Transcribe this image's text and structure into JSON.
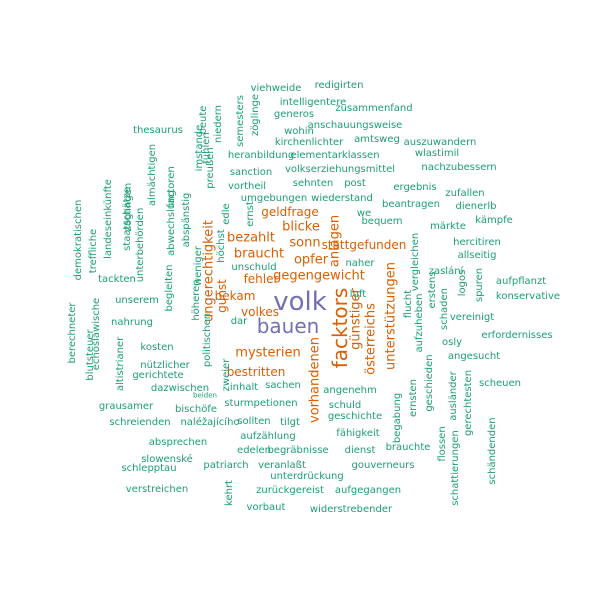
{
  "colors": {
    "teal": "#1b9e77",
    "orange": "#d95f02",
    "purple": "#7570b3"
  },
  "words": [
    {
      "t": "volk",
      "c": "purple"
    },
    {
      "t": "bauen",
      "c": "purple"
    },
    {
      "t": "facktors",
      "c": "orange"
    },
    {
      "t": "vorhandenen",
      "c": "orange"
    },
    {
      "t": "österreichs",
      "c": "orange"
    },
    {
      "t": "unterstützungen",
      "c": "orange"
    },
    {
      "t": "anlagen",
      "c": "orange"
    },
    {
      "t": "günstiger",
      "c": "orange"
    },
    {
      "t": "ungerechtigkeit",
      "c": "orange"
    },
    {
      "t": "gunst",
      "c": "orange"
    },
    {
      "t": "mysterien",
      "c": "orange"
    },
    {
      "t": "bestritten",
      "c": "orange"
    },
    {
      "t": "gegengewicht",
      "c": "orange"
    },
    {
      "t": "stattgefunden",
      "c": "orange"
    },
    {
      "t": "braucht",
      "c": "orange"
    },
    {
      "t": "bezahlt",
      "c": "orange"
    },
    {
      "t": "fehler",
      "c": "orange"
    },
    {
      "t": "opfer",
      "c": "orange"
    },
    {
      "t": "sonn",
      "c": "orange"
    },
    {
      "t": "blicke",
      "c": "orange"
    },
    {
      "t": "geldfrage",
      "c": "orange"
    },
    {
      "t": "bekam",
      "c": "orange"
    },
    {
      "t": "volkes",
      "c": "orange"
    },
    {
      "t": "redigirten",
      "c": "teal"
    },
    {
      "t": "viehweide",
      "c": "teal"
    },
    {
      "t": "intelligentere",
      "c": "teal"
    },
    {
      "t": "zusammenfand",
      "c": "teal"
    },
    {
      "t": "semesters",
      "c": "teal"
    },
    {
      "t": "zöglinge",
      "c": "teal"
    },
    {
      "t": "generos",
      "c": "teal"
    },
    {
      "t": "anschauungsweise",
      "c": "teal"
    },
    {
      "t": "beute",
      "c": "teal"
    },
    {
      "t": "niedern",
      "c": "teal"
    },
    {
      "t": "wohin",
      "c": "teal"
    },
    {
      "t": "amtsweg",
      "c": "teal"
    },
    {
      "t": "auszuwandern",
      "c": "teal"
    },
    {
      "t": "thesaurus",
      "c": "teal"
    },
    {
      "t": "kirchenlichter",
      "c": "teal"
    },
    {
      "t": "wlastimil",
      "c": "teal"
    },
    {
      "t": "imstande",
      "c": "teal"
    },
    {
      "t": "heranbildung",
      "c": "teal"
    },
    {
      "t": "elementarklassen",
      "c": "teal"
    },
    {
      "t": "nachzubessern",
      "c": "teal"
    },
    {
      "t": "fühlen",
      "c": "teal"
    },
    {
      "t": "preußen",
      "c": "teal"
    },
    {
      "t": "volkserziehungsmittel",
      "c": "teal"
    },
    {
      "t": "almächtigen",
      "c": "teal"
    },
    {
      "t": "factoren",
      "c": "teal"
    },
    {
      "t": "zöglingen",
      "c": "teal"
    },
    {
      "t": "sanction",
      "c": "teal"
    },
    {
      "t": "ergebnis",
      "c": "teal"
    },
    {
      "t": "sehnten",
      "c": "teal"
    },
    {
      "t": "post",
      "c": "teal"
    },
    {
      "t": "zufallen",
      "c": "teal"
    },
    {
      "t": "vortheil",
      "c": "teal"
    },
    {
      "t": "landeseinkünfte",
      "c": "teal"
    },
    {
      "t": "staatschätze",
      "c": "teal"
    },
    {
      "t": "umgebungen",
      "c": "teal"
    },
    {
      "t": "wiederstand",
      "c": "teal"
    },
    {
      "t": "dienerlb",
      "c": "teal"
    },
    {
      "t": "demokratischen",
      "c": "teal"
    },
    {
      "t": "abwechslung",
      "c": "teal"
    },
    {
      "t": "beantragen",
      "c": "teal"
    },
    {
      "t": "edle",
      "c": "teal"
    },
    {
      "t": "ernst",
      "c": "teal"
    },
    {
      "t": "we",
      "c": "teal"
    },
    {
      "t": "kämpfe",
      "c": "teal"
    },
    {
      "t": "bequem",
      "c": "teal"
    },
    {
      "t": "märkte",
      "c": "teal"
    },
    {
      "t": "unterbehörden",
      "c": "teal"
    },
    {
      "t": "abspänstig",
      "c": "teal"
    },
    {
      "t": "treffliche",
      "c": "teal"
    },
    {
      "t": "hercitiren",
      "c": "teal"
    },
    {
      "t": "allseitig",
      "c": "teal"
    },
    {
      "t": "höchst",
      "c": "teal"
    },
    {
      "t": "unschuld",
      "c": "teal"
    },
    {
      "t": "naher",
      "c": "teal"
    },
    {
      "t": "vergleichen",
      "c": "teal"
    },
    {
      "t": "zaslání",
      "c": "teal"
    },
    {
      "t": "tackten",
      "c": "teal"
    },
    {
      "t": "weniger",
      "c": "teal"
    },
    {
      "t": "aufpflanzt",
      "c": "teal"
    },
    {
      "t": "begleiten",
      "c": "teal"
    },
    {
      "t": "luft",
      "c": "teal"
    },
    {
      "t": "erstens",
      "c": "teal"
    },
    {
      "t": "logos",
      "c": "teal"
    },
    {
      "t": "konservative",
      "c": "teal"
    },
    {
      "t": "unserem",
      "c": "teal"
    },
    {
      "t": "höheren",
      "c": "teal"
    },
    {
      "t": "flucht",
      "c": "teal"
    },
    {
      "t": "spuren",
      "c": "teal"
    },
    {
      "t": "berechneter",
      "c": "teal"
    },
    {
      "t": "echoslawische",
      "c": "teal"
    },
    {
      "t": "nahrung",
      "c": "teal"
    },
    {
      "t": "dar",
      "c": "teal"
    },
    {
      "t": "aufzuheben",
      "c": "teal"
    },
    {
      "t": "schaden",
      "c": "teal"
    },
    {
      "t": "vereinigt",
      "c": "teal"
    },
    {
      "t": "blutsteuer",
      "c": "teal"
    },
    {
      "t": "politischen",
      "c": "teal"
    },
    {
      "t": "erfordernisses",
      "c": "teal"
    },
    {
      "t": "kosten",
      "c": "teal"
    },
    {
      "t": "osly",
      "c": "teal"
    },
    {
      "t": "altistrianer",
      "c": "teal"
    },
    {
      "t": "nützlicher",
      "c": "teal"
    },
    {
      "t": "angesucht",
      "c": "teal"
    },
    {
      "t": "gerichtete",
      "c": "teal"
    },
    {
      "t": "zweier",
      "c": "teal"
    },
    {
      "t": "scheuen",
      "c": "teal"
    },
    {
      "t": "inhalt",
      "c": "teal"
    },
    {
      "t": "sachen",
      "c": "teal"
    },
    {
      "t": "angenehm",
      "c": "teal"
    },
    {
      "t": "dazwischen",
      "c": "teal"
    },
    {
      "t": "beiden",
      "c": "teal"
    },
    {
      "t": "geschieden",
      "c": "teal"
    },
    {
      "t": "grausamer",
      "c": "teal"
    },
    {
      "t": "sturmpetionen",
      "c": "teal"
    },
    {
      "t": "schuld",
      "c": "teal"
    },
    {
      "t": "ausländer",
      "c": "teal"
    },
    {
      "t": "bischöfe",
      "c": "teal"
    },
    {
      "t": "geschichte",
      "c": "teal"
    },
    {
      "t": "ernsten",
      "c": "teal"
    },
    {
      "t": "gerechtesten",
      "c": "teal"
    },
    {
      "t": "schreienden",
      "c": "teal"
    },
    {
      "t": "naléžajícího",
      "c": "teal"
    },
    {
      "t": "sollten",
      "c": "teal"
    },
    {
      "t": "tilgt",
      "c": "teal"
    },
    {
      "t": "begabung",
      "c": "teal"
    },
    {
      "t": "fähigkeit",
      "c": "teal"
    },
    {
      "t": "aufzählung",
      "c": "teal"
    },
    {
      "t": "brauchte",
      "c": "teal"
    },
    {
      "t": "absprechen",
      "c": "teal"
    },
    {
      "t": "schändenden",
      "c": "teal"
    },
    {
      "t": "edelen",
      "c": "teal"
    },
    {
      "t": "begräbnisse",
      "c": "teal"
    },
    {
      "t": "dienst",
      "c": "teal"
    },
    {
      "t": "flossen",
      "c": "teal"
    },
    {
      "t": "slowenské",
      "c": "teal"
    },
    {
      "t": "schattierungen",
      "c": "teal"
    },
    {
      "t": "schlepptau",
      "c": "teal"
    },
    {
      "t": "patriarch",
      "c": "teal"
    },
    {
      "t": "veranlaßt",
      "c": "teal"
    },
    {
      "t": "gouverneurs",
      "c": "teal"
    },
    {
      "t": "unterdrückung",
      "c": "teal"
    },
    {
      "t": "verstreichen",
      "c": "teal"
    },
    {
      "t": "zurückgereist",
      "c": "teal"
    },
    {
      "t": "aufgegangen",
      "c": "teal"
    },
    {
      "t": "kehrt",
      "c": "teal"
    },
    {
      "t": "vorbaut",
      "c": "teal"
    },
    {
      "t": "widerstrebender",
      "c": "teal"
    }
  ]
}
